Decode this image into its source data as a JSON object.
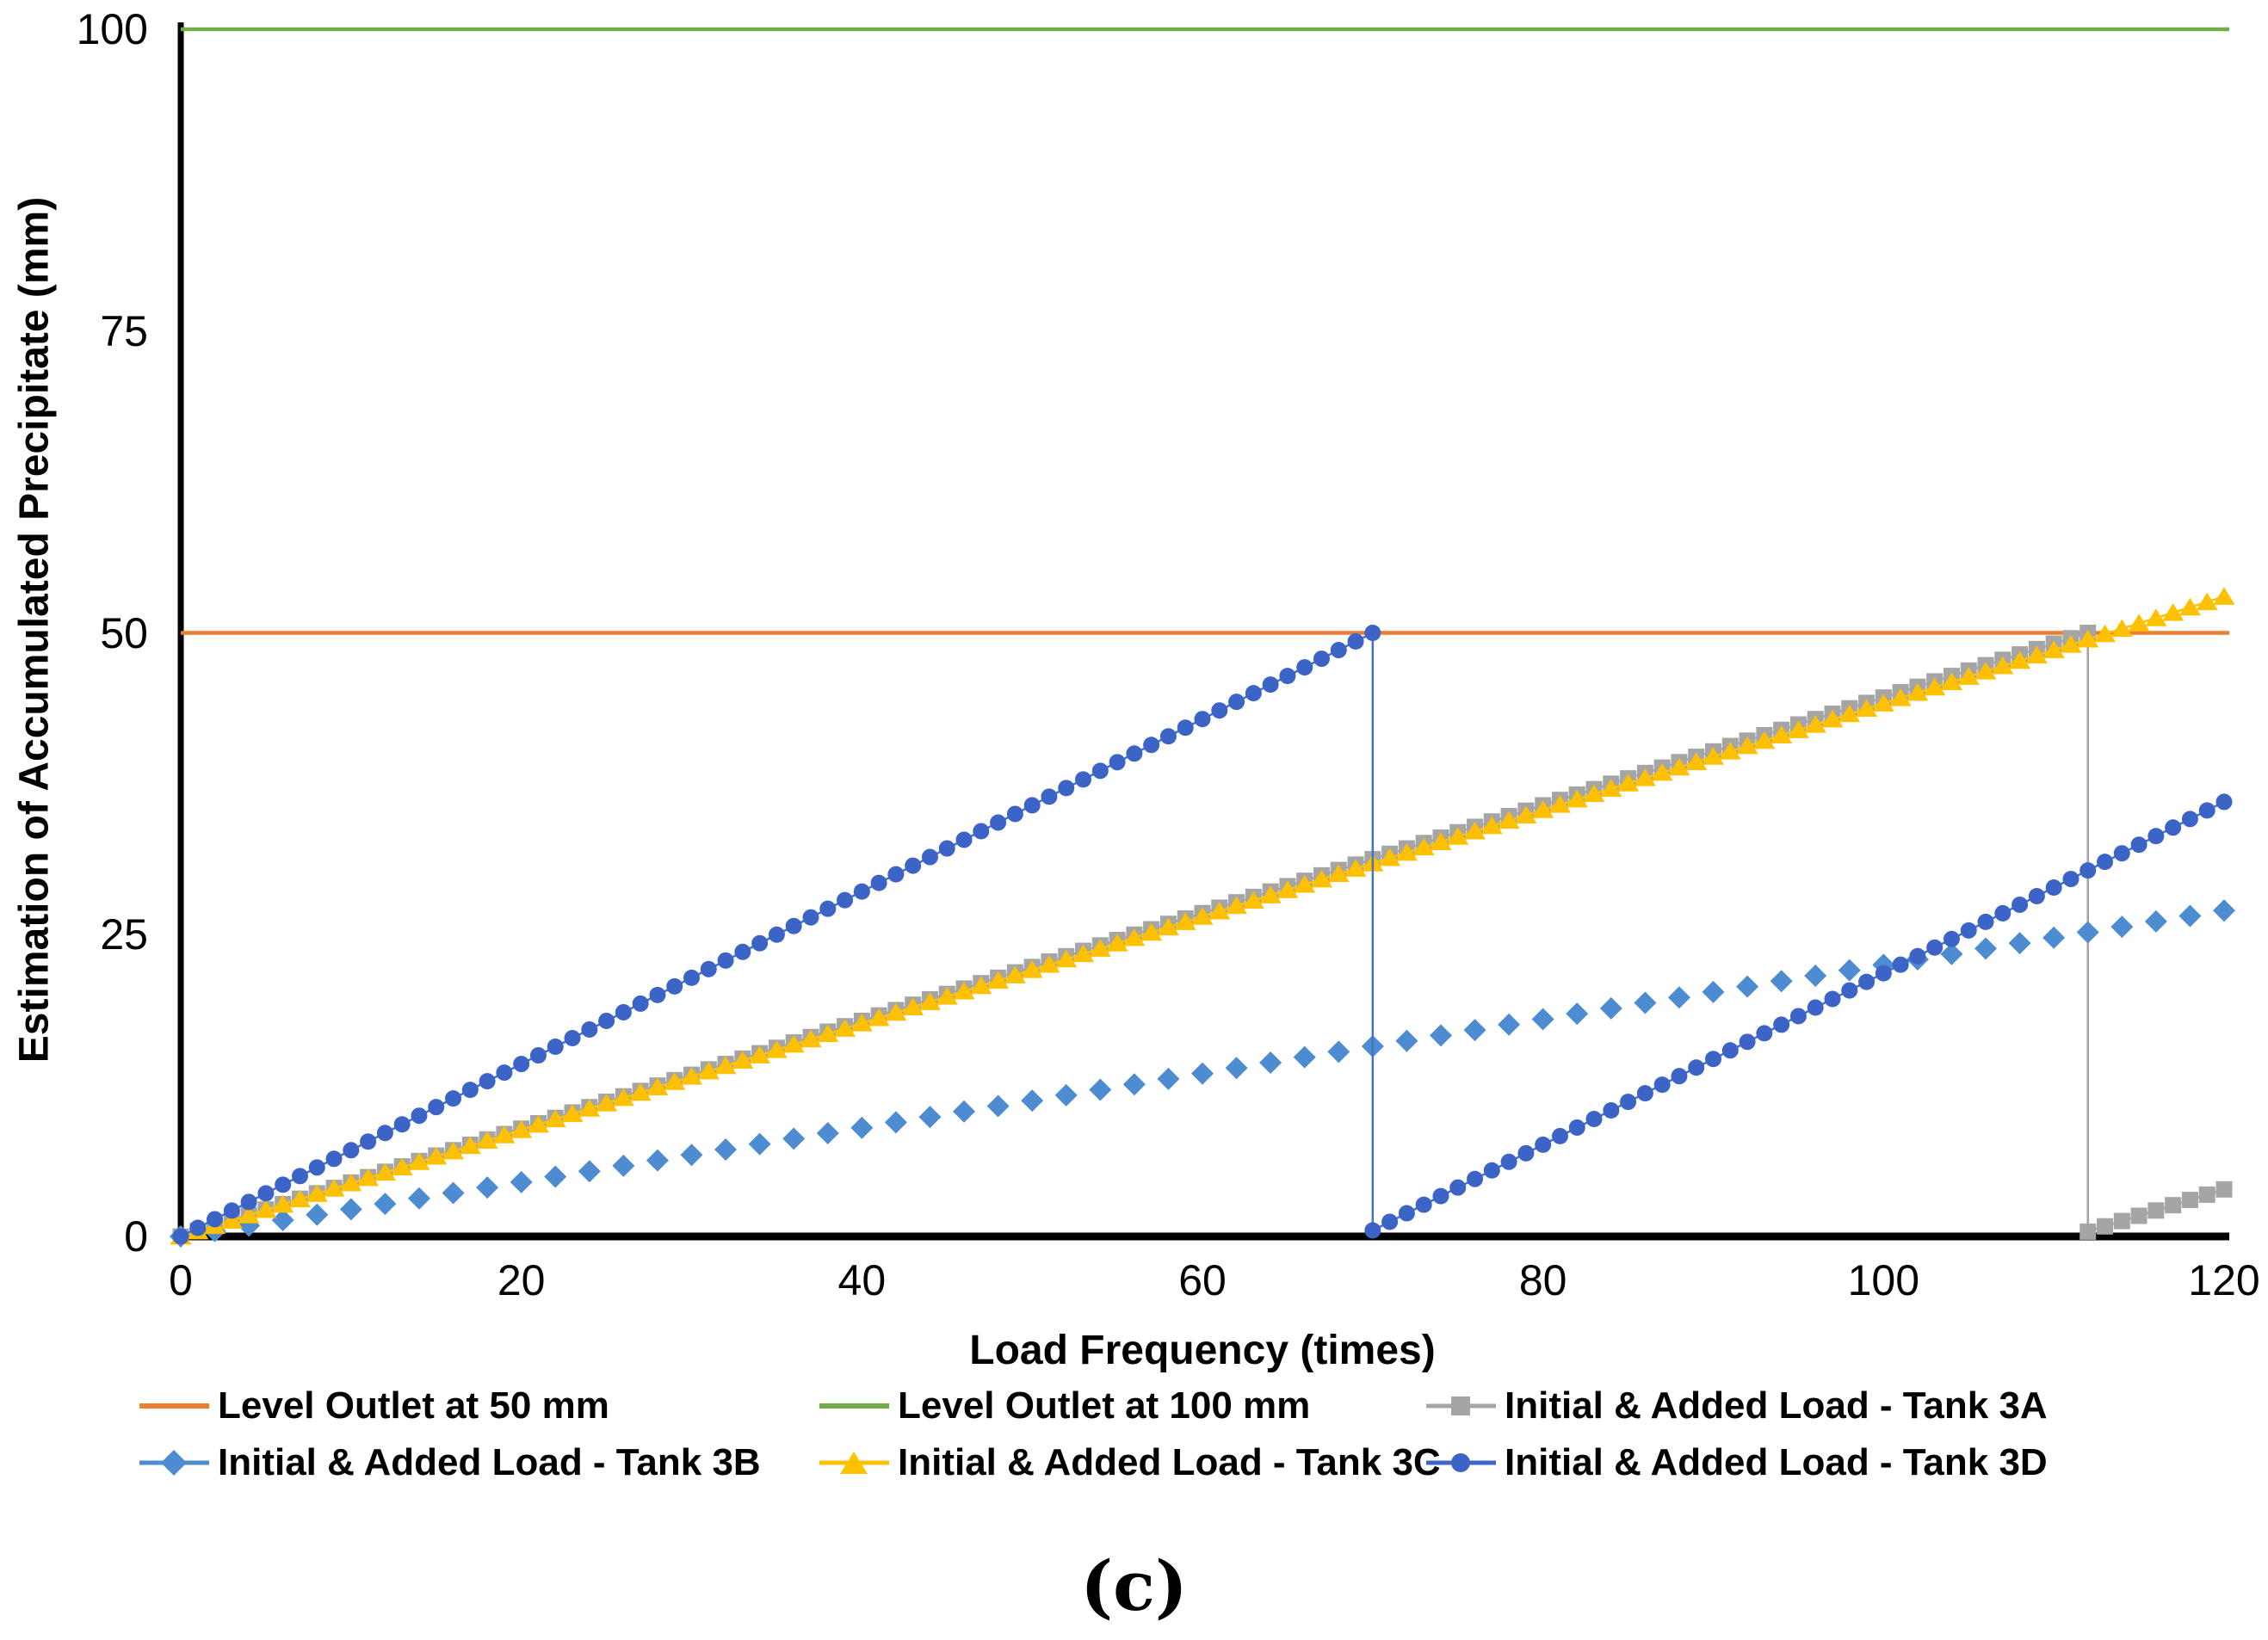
{
  "figure": {
    "caption": "(c)"
  },
  "chart_data": {
    "type": "scatter-line",
    "title": "",
    "xlabel": "Load Frequency (times)",
    "ylabel": "Estimation of Accumulated Precipitate (mm)",
    "xlim": [
      0,
      120
    ],
    "ylim": [
      0,
      100
    ],
    "x_ticks": [
      0,
      20,
      40,
      60,
      80,
      100,
      120
    ],
    "y_ticks": [
      0,
      25,
      50,
      75,
      100
    ],
    "grid": false,
    "legend_position": "bottom",
    "axis_color": "#000000",
    "series": [
      {
        "name": "Level Outlet at 50 mm",
        "type": "hline",
        "y": 50,
        "color": "#ED7D31",
        "line_width": 4.5
      },
      {
        "name": "Level Outlet at 100 mm",
        "type": "hline",
        "y": 100,
        "color": "#70AD47",
        "line_width": 4.5
      },
      {
        "name": "Initial & Added Load - Tank 3A",
        "type": "line+marker",
        "marker": "square",
        "color": "#A5A5A5",
        "x_step": 1,
        "segments": [
          {
            "x0": 0,
            "y0": 0,
            "x1": 112,
            "y1": 50
          },
          {
            "x0": 112,
            "y0": 0.4,
            "x1": 120,
            "y1": 3.9
          }
        ]
      },
      {
        "name": "Initial & Added Load - Tank 3B",
        "type": "marker",
        "marker": "diamond",
        "color": "#4E8CD2",
        "x_step": 2,
        "segments": [
          {
            "x0": 0,
            "y0": 0,
            "x1": 120,
            "y1": 27
          }
        ]
      },
      {
        "name": "Initial & Added Load - Tank 3C",
        "type": "line+marker",
        "marker": "triangle",
        "color": "#FFC000",
        "x_step": 1,
        "segments": [
          {
            "x0": 0,
            "y0": 0,
            "x1": 120,
            "y1": 53
          }
        ]
      },
      {
        "name": "Initial & Added Load - Tank 3D",
        "type": "line+marker",
        "marker": "circle",
        "color": "#3C64C6",
        "line_color": "#4472C4",
        "x_step": 1,
        "segments": [
          {
            "x0": 0,
            "y0": 0,
            "x1": 70,
            "y1": 50
          },
          {
            "x0": 70,
            "y0": 0.5,
            "x1": 120,
            "y1": 36
          }
        ]
      }
    ]
  },
  "legend": {
    "items": [
      {
        "label": "Level Outlet at 50 mm",
        "swatch": "line",
        "color": "#ED7D31"
      },
      {
        "label": "Level Outlet at 100 mm",
        "swatch": "line",
        "color": "#70AD47"
      },
      {
        "label": "Initial & Added Load - Tank 3A",
        "swatch": "line+square",
        "color": "#A5A5A5"
      },
      {
        "label": "Initial & Added Load - Tank 3B",
        "swatch": "line+diamond",
        "color": "#4E8CD2"
      },
      {
        "label": "Initial & Added Load - Tank 3C",
        "swatch": "line+triangle",
        "color": "#FFC000"
      },
      {
        "label": "Initial & Added Load - Tank 3D",
        "swatch": "line+circle",
        "color": "#3C64C6"
      }
    ]
  }
}
